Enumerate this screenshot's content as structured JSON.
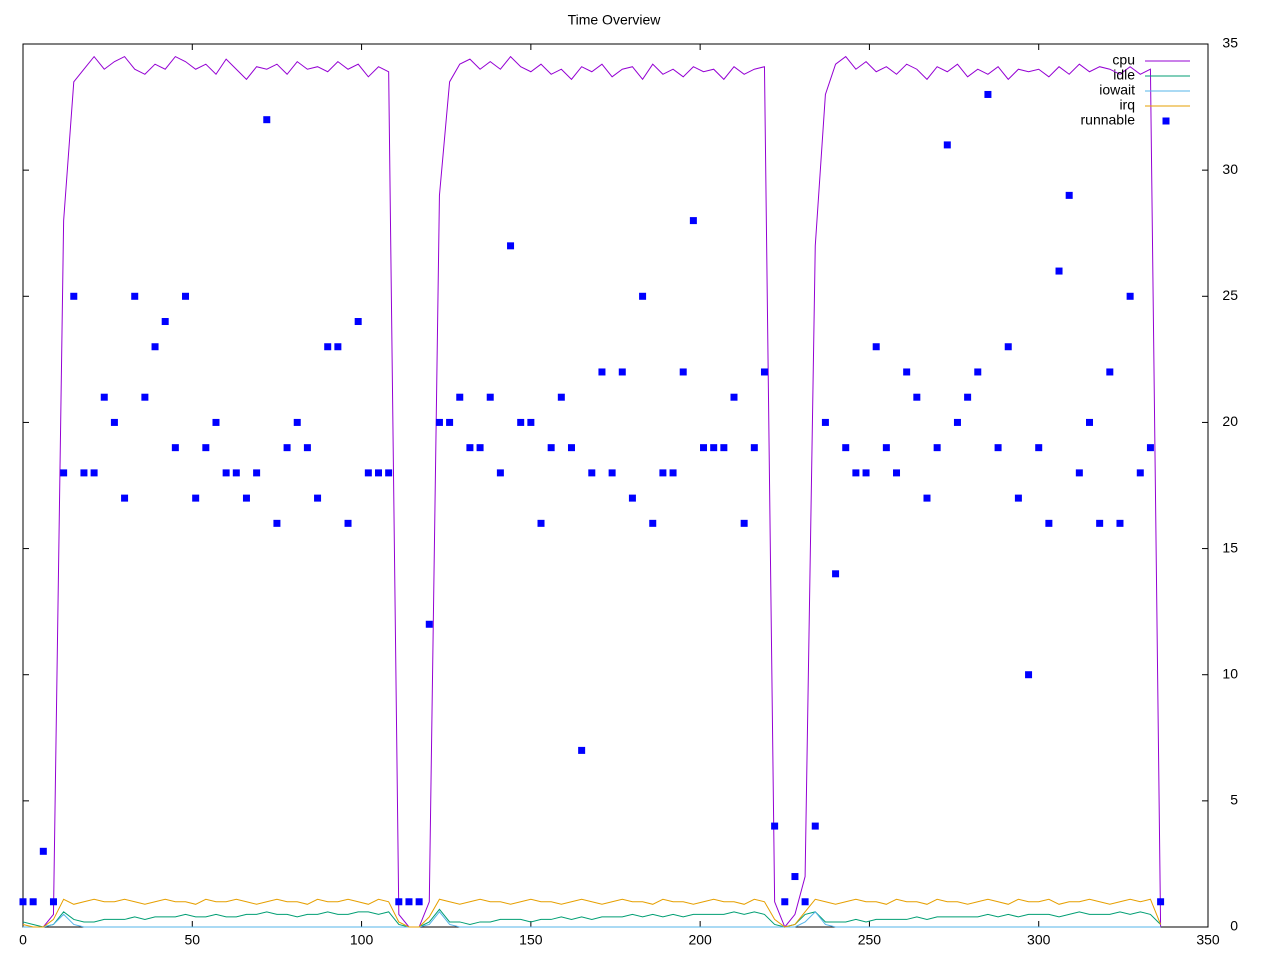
{
  "chart_data": {
    "type": "line",
    "title": "Time Overview",
    "x": [
      0,
      3,
      6,
      9,
      12,
      15,
      18,
      21,
      24,
      27,
      30,
      33,
      36,
      39,
      42,
      45,
      48,
      51,
      54,
      57,
      60,
      63,
      66,
      69,
      72,
      75,
      78,
      81,
      84,
      87,
      90,
      93,
      96,
      99,
      102,
      105,
      108,
      111,
      114,
      117,
      120,
      123,
      126,
      129,
      132,
      135,
      138,
      141,
      144,
      147,
      150,
      153,
      156,
      159,
      162,
      165,
      168,
      171,
      174,
      177,
      180,
      183,
      186,
      189,
      192,
      195,
      198,
      201,
      204,
      207,
      210,
      213,
      216,
      219,
      222,
      225,
      228,
      231,
      234,
      237,
      240,
      243,
      246,
      249,
      252,
      255,
      258,
      261,
      264,
      267,
      270,
      273,
      276,
      279,
      282,
      285,
      288,
      291,
      294,
      297,
      300,
      303,
      306,
      309,
      312,
      315,
      318,
      321,
      324,
      327,
      330,
      333,
      336
    ],
    "series": [
      {
        "name": "cpu",
        "color": "#9400d3",
        "style": "line",
        "values": [
          0,
          0,
          0,
          0.5,
          28,
          33.5,
          34,
          34.5,
          34,
          34.3,
          34.5,
          34,
          33.8,
          34.2,
          34,
          34.5,
          34.3,
          34,
          34.2,
          33.8,
          34.4,
          34,
          33.6,
          34.1,
          34,
          34.2,
          33.8,
          34.3,
          34,
          34.1,
          33.9,
          34.3,
          34,
          34.2,
          33.7,
          34.1,
          33.9,
          0.5,
          0,
          0,
          1,
          29,
          33.5,
          34.2,
          34.4,
          34,
          34.3,
          34,
          34.5,
          34.1,
          33.9,
          34.2,
          33.8,
          34,
          33.6,
          34.1,
          33.9,
          34.2,
          33.7,
          34,
          34.1,
          33.6,
          34.2,
          33.8,
          34,
          33.7,
          34.1,
          33.9,
          34,
          33.6,
          34.1,
          33.8,
          34,
          34.1,
          1,
          0,
          0.5,
          2,
          27,
          33,
          34.2,
          34.5,
          34,
          34.3,
          33.9,
          34.1,
          33.8,
          34.2,
          34,
          33.6,
          34.1,
          33.9,
          34.2,
          33.7,
          34,
          33.8,
          34.1,
          33.6,
          34,
          33.9,
          34,
          33.7,
          34.1,
          33.8,
          34.2,
          33.9,
          34.1,
          34,
          33.8,
          34.1,
          33.8,
          34,
          0
        ]
      },
      {
        "name": "idle",
        "color": "#009e73",
        "style": "line",
        "values": [
          0.2,
          0.1,
          0,
          0.1,
          0.6,
          0.3,
          0.2,
          0.2,
          0.3,
          0.3,
          0.3,
          0.4,
          0.3,
          0.4,
          0.4,
          0.4,
          0.5,
          0.4,
          0.4,
          0.5,
          0.4,
          0.4,
          0.5,
          0.5,
          0.6,
          0.5,
          0.5,
          0.4,
          0.5,
          0.5,
          0.6,
          0.5,
          0.5,
          0.6,
          0.6,
          0.5,
          0.6,
          0.1,
          0,
          0,
          0.2,
          0.7,
          0.2,
          0.2,
          0.1,
          0.2,
          0.2,
          0.3,
          0.3,
          0.3,
          0.2,
          0.3,
          0.3,
          0.4,
          0.3,
          0.4,
          0.3,
          0.4,
          0.4,
          0.4,
          0.5,
          0.4,
          0.5,
          0.4,
          0.5,
          0.4,
          0.5,
          0.5,
          0.5,
          0.5,
          0.6,
          0.5,
          0.6,
          0.5,
          0.1,
          0,
          0.1,
          0.5,
          0.6,
          0.2,
          0.2,
          0.2,
          0.3,
          0.2,
          0.3,
          0.3,
          0.3,
          0.3,
          0.4,
          0.3,
          0.4,
          0.4,
          0.4,
          0.4,
          0.4,
          0.5,
          0.4,
          0.5,
          0.4,
          0.5,
          0.5,
          0.5,
          0.4,
          0.5,
          0.6,
          0.5,
          0.5,
          0.5,
          0.6,
          0.5,
          0.6,
          0.5,
          0.1
        ]
      },
      {
        "name": "iowait",
        "color": "#56b4e9",
        "style": "line",
        "values": [
          0,
          0,
          0,
          0.1,
          0.5,
          0.1,
          0,
          0,
          0,
          0,
          0,
          0,
          0,
          0,
          0,
          0,
          0,
          0,
          0,
          0,
          0,
          0,
          0,
          0,
          0,
          0,
          0,
          0,
          0,
          0,
          0,
          0,
          0,
          0,
          0,
          0,
          0,
          0,
          0,
          0,
          0.1,
          0.6,
          0.1,
          0,
          0,
          0,
          0,
          0,
          0,
          0,
          0,
          0,
          0,
          0,
          0,
          0,
          0,
          0,
          0,
          0,
          0,
          0,
          0,
          0,
          0,
          0,
          0,
          0,
          0,
          0,
          0,
          0,
          0,
          0,
          0,
          0,
          0,
          0.2,
          0.6,
          0.1,
          0,
          0,
          0,
          0,
          0,
          0,
          0,
          0,
          0,
          0,
          0,
          0,
          0,
          0,
          0,
          0,
          0,
          0,
          0,
          0,
          0,
          0,
          0,
          0,
          0,
          0,
          0,
          0,
          0,
          0,
          0,
          0,
          0
        ]
      },
      {
        "name": "irq",
        "color": "#e69f00",
        "style": "line",
        "values": [
          0.1,
          0,
          0,
          0.3,
          1.1,
          0.9,
          1,
          1.1,
          1,
          1,
          1.1,
          1,
          0.9,
          1,
          1.1,
          1,
          1,
          0.9,
          1.1,
          1,
          1,
          1.1,
          1,
          0.9,
          1,
          1.1,
          1,
          1,
          0.9,
          1.1,
          1,
          1,
          1.1,
          1,
          0.9,
          1.1,
          1,
          0.2,
          0,
          0,
          0.4,
          1.1,
          1,
          0.9,
          1,
          1.1,
          1,
          1,
          0.9,
          1,
          1.1,
          1,
          1,
          0.9,
          1,
          1.1,
          1,
          0.9,
          1,
          1.1,
          1,
          1,
          0.9,
          1.1,
          1,
          1,
          0.9,
          1,
          1.1,
          1,
          1,
          0.9,
          1.1,
          1,
          0.3,
          0,
          0.1,
          0.6,
          1.1,
          1,
          0.9,
          1,
          1.1,
          1,
          1,
          0.9,
          1.1,
          1,
          1,
          0.9,
          1.1,
          1,
          1,
          0.9,
          1,
          1.1,
          1,
          0.9,
          1.1,
          1,
          1,
          1.1,
          0.9,
          1,
          1,
          1.1,
          1,
          0.9,
          1,
          1.1,
          1,
          1.1,
          0.1
        ]
      },
      {
        "name": "runnable",
        "color": "#0000ff",
        "style": "points",
        "values": [
          1,
          1,
          3,
          1,
          18,
          25,
          18,
          18,
          21,
          20,
          17,
          25,
          21,
          23,
          24,
          19,
          25,
          17,
          19,
          20,
          18,
          18,
          17,
          18,
          32,
          16,
          19,
          20,
          19,
          17,
          23,
          23,
          16,
          24,
          18,
          18,
          18,
          1,
          1,
          1,
          12,
          20,
          20,
          21,
          19,
          19,
          21,
          18,
          27,
          20,
          20,
          16,
          19,
          21,
          19,
          7,
          18,
          22,
          18,
          22,
          17,
          25,
          16,
          18,
          18,
          22,
          28,
          19,
          19,
          19,
          21,
          16,
          19,
          22,
          4,
          1,
          2,
          1,
          4,
          20,
          14,
          19,
          18,
          18,
          23,
          19,
          18,
          22,
          21,
          17,
          19,
          31,
          20,
          21,
          22,
          33,
          19,
          23,
          17,
          10,
          19,
          16,
          26,
          29,
          18,
          20,
          16,
          22,
          16,
          25,
          18,
          19,
          1
        ]
      }
    ],
    "xlim": [
      0,
      350
    ],
    "xticks": [
      0,
      50,
      100,
      150,
      200,
      250,
      300,
      350
    ],
    "ylim": [
      0,
      35
    ],
    "yticks": [
      0,
      5,
      10,
      15,
      20,
      25,
      30,
      35
    ],
    "legend": "top right"
  }
}
